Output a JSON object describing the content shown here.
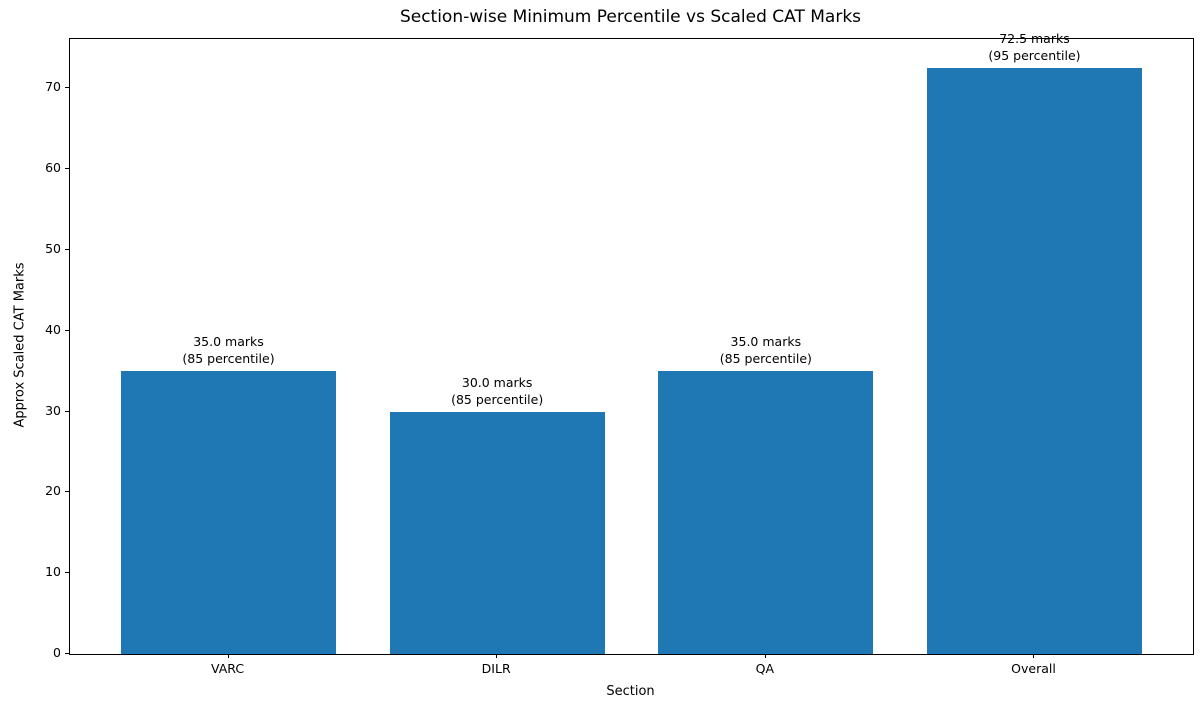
{
  "chart_data": {
    "type": "bar",
    "title": "Section-wise Minimum Percentile vs Scaled CAT Marks",
    "xlabel": "Section",
    "ylabel": "Approx Scaled CAT Marks",
    "categories": [
      "VARC",
      "DILR",
      "QA",
      "Overall"
    ],
    "values": [
      35.0,
      30.0,
      35.0,
      72.5
    ],
    "percentiles": [
      85,
      85,
      85,
      95
    ],
    "bar_labels": [
      [
        "35.0 marks",
        "(85 percentile)"
      ],
      [
        "30.0 marks",
        "(85 percentile)"
      ],
      [
        "35.0 marks",
        "(85 percentile)"
      ],
      [
        "72.5 marks",
        "(95 percentile)"
      ]
    ],
    "yticks": [
      0,
      10,
      20,
      30,
      40,
      50,
      60,
      70
    ],
    "ylim": [
      0,
      76.125
    ],
    "xlim": [
      -0.59,
      3.59
    ],
    "bar_width": 0.8,
    "bar_color": "#1f77b4",
    "grid": false,
    "legend_position": "none"
  }
}
